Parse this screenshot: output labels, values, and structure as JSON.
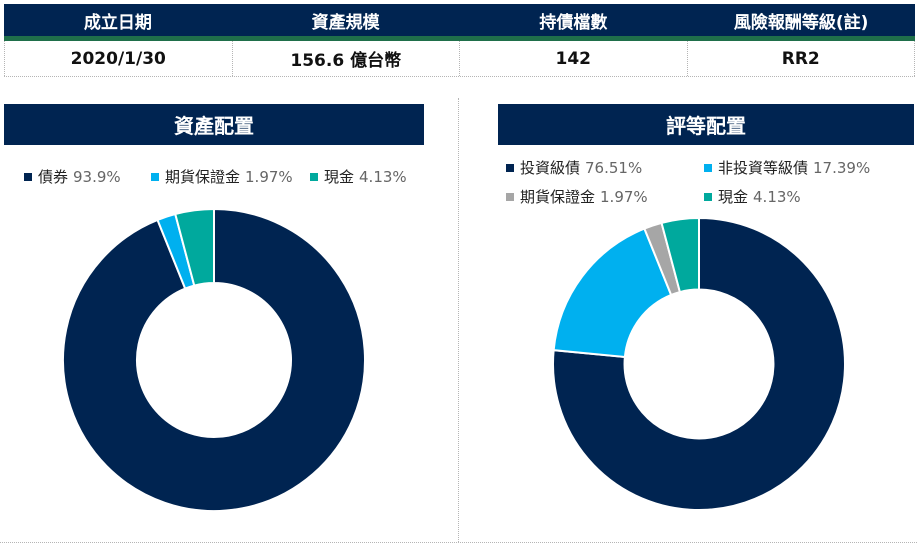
{
  "info": {
    "headers": [
      "成立日期",
      "資產規模",
      "持債檔數",
      "風險報酬等級(註)"
    ],
    "values": [
      "2020/1/30",
      "156.6 億台幣",
      "142",
      "RR2"
    ]
  },
  "colors": {
    "navy": "#002451",
    "sky": "#00b0ef",
    "gray": "#a6a6a6",
    "teal": "#00a99d",
    "green_rule": "#1f6f4a"
  },
  "chart_data": [
    {
      "type": "pie",
      "title": "資產配置",
      "donut": true,
      "legend_position": "top",
      "slices": [
        {
          "label": "債券",
          "value": 93.9,
          "display": "93.9%",
          "color": "#002451"
        },
        {
          "label": "期貨保證金",
          "value": 1.97,
          "display": "1.97%",
          "color": "#00b0ef"
        },
        {
          "label": "現金",
          "value": 4.13,
          "display": "4.13%",
          "color": "#00a99d"
        }
      ]
    },
    {
      "type": "pie",
      "title": "評等配置",
      "donut": true,
      "legend_position": "top",
      "slices": [
        {
          "label": "投資級債",
          "value": 76.51,
          "display": "76.51%",
          "color": "#002451"
        },
        {
          "label": "非投資等級債",
          "value": 17.39,
          "display": "17.39%",
          "color": "#00b0ef"
        },
        {
          "label": "期貨保證金",
          "value": 1.97,
          "display": "1.97%",
          "color": "#a6a6a6"
        },
        {
          "label": "現金",
          "value": 4.13,
          "display": "4.13%",
          "color": "#00a99d"
        }
      ]
    }
  ]
}
